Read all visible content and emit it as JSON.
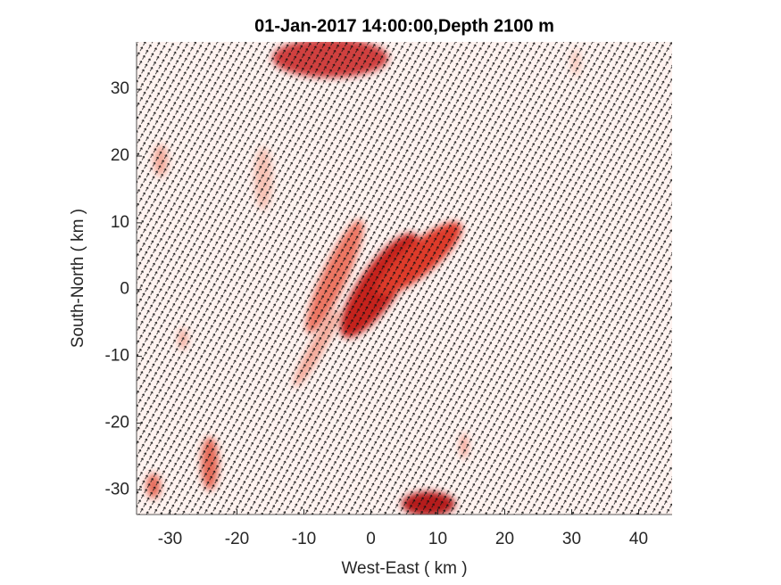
{
  "chart_data": {
    "type": "quiver",
    "title": "01-Jan-2017 14:00:00,Depth 2100 m",
    "x_label": "West-East ( km )",
    "y_label": "South-North ( km )",
    "xlim": [
      -35,
      45
    ],
    "ylim": [
      -33.7,
      37.1
    ],
    "xticks": [
      -30,
      -20,
      -10,
      0,
      10,
      20,
      30,
      40
    ],
    "yticks": [
      -30,
      -20,
      -10,
      0,
      10,
      20,
      30
    ]
  }
}
